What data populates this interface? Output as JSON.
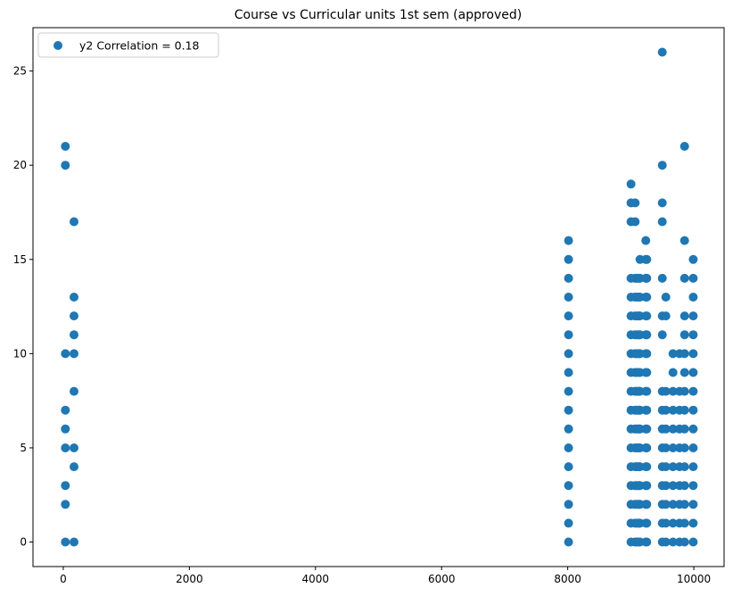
{
  "chart_data": {
    "type": "scatter",
    "title": "Course vs Curricular units 1st sem (approved)",
    "xlabel": "",
    "ylabel": "",
    "xlim": [
      -480,
      10480
    ],
    "ylim": [
      -1.3,
      27.3
    ],
    "xticks": [
      0,
      2000,
      4000,
      6000,
      8000,
      10000
    ],
    "yticks": [
      0,
      5,
      10,
      15,
      20,
      25
    ],
    "grid": false,
    "legend": {
      "position": "top-left"
    },
    "series": [
      {
        "name": "y2 Correlation = 0.18",
        "color": "#1f77b4",
        "points": [
          [
            33,
            0
          ],
          [
            33,
            2
          ],
          [
            33,
            3
          ],
          [
            33,
            5
          ],
          [
            33,
            6
          ],
          [
            33,
            7
          ],
          [
            33,
            10
          ],
          [
            33,
            20
          ],
          [
            33,
            21
          ],
          [
            171,
            0
          ],
          [
            171,
            4
          ],
          [
            171,
            5
          ],
          [
            171,
            8
          ],
          [
            171,
            10
          ],
          [
            171,
            11
          ],
          [
            171,
            12
          ],
          [
            171,
            13
          ],
          [
            171,
            17
          ],
          [
            8014,
            0
          ],
          [
            8014,
            1
          ],
          [
            8014,
            2
          ],
          [
            8014,
            3
          ],
          [
            8014,
            4
          ],
          [
            8014,
            5
          ],
          [
            8014,
            6
          ],
          [
            8014,
            7
          ],
          [
            8014,
            8
          ],
          [
            8014,
            9
          ],
          [
            8014,
            10
          ],
          [
            8014,
            11
          ],
          [
            8014,
            12
          ],
          [
            8014,
            13
          ],
          [
            8014,
            14
          ],
          [
            8014,
            15
          ],
          [
            8014,
            16
          ],
          [
            9003,
            0
          ],
          [
            9003,
            1
          ],
          [
            9003,
            2
          ],
          [
            9003,
            3
          ],
          [
            9003,
            4
          ],
          [
            9003,
            5
          ],
          [
            9003,
            6
          ],
          [
            9003,
            7
          ],
          [
            9003,
            8
          ],
          [
            9003,
            9
          ],
          [
            9003,
            10
          ],
          [
            9003,
            11
          ],
          [
            9003,
            12
          ],
          [
            9003,
            13
          ],
          [
            9003,
            14
          ],
          [
            9003,
            17
          ],
          [
            9003,
            18
          ],
          [
            9003,
            19
          ],
          [
            9070,
            0
          ],
          [
            9070,
            1
          ],
          [
            9070,
            2
          ],
          [
            9070,
            3
          ],
          [
            9070,
            4
          ],
          [
            9070,
            5
          ],
          [
            9070,
            6
          ],
          [
            9070,
            7
          ],
          [
            9070,
            8
          ],
          [
            9070,
            9
          ],
          [
            9070,
            10
          ],
          [
            9070,
            11
          ],
          [
            9070,
            12
          ],
          [
            9070,
            13
          ],
          [
            9070,
            14
          ],
          [
            9070,
            17
          ],
          [
            9070,
            18
          ],
          [
            9085,
            0
          ],
          [
            9085,
            1
          ],
          [
            9085,
            2
          ],
          [
            9085,
            3
          ],
          [
            9085,
            4
          ],
          [
            9085,
            5
          ],
          [
            9085,
            6
          ],
          [
            9085,
            7
          ],
          [
            9085,
            8
          ],
          [
            9085,
            9
          ],
          [
            9085,
            10
          ],
          [
            9085,
            11
          ],
          [
            9085,
            12
          ],
          [
            9085,
            13
          ],
          [
            9085,
            14
          ],
          [
            9119,
            0
          ],
          [
            9119,
            1
          ],
          [
            9119,
            2
          ],
          [
            9119,
            3
          ],
          [
            9119,
            4
          ],
          [
            9119,
            5
          ],
          [
            9119,
            6
          ],
          [
            9119,
            7
          ],
          [
            9119,
            8
          ],
          [
            9119,
            9
          ],
          [
            9119,
            10
          ],
          [
            9119,
            11
          ],
          [
            9119,
            12
          ],
          [
            9119,
            13
          ],
          [
            9119,
            14
          ],
          [
            9130,
            0
          ],
          [
            9130,
            1
          ],
          [
            9130,
            2
          ],
          [
            9130,
            3
          ],
          [
            9130,
            4
          ],
          [
            9130,
            5
          ],
          [
            9130,
            6
          ],
          [
            9130,
            7
          ],
          [
            9130,
            8
          ],
          [
            9130,
            10
          ],
          [
            9130,
            11
          ],
          [
            9130,
            12
          ],
          [
            9130,
            13
          ],
          [
            9130,
            14
          ],
          [
            9147,
            0
          ],
          [
            9147,
            1
          ],
          [
            9147,
            2
          ],
          [
            9147,
            3
          ],
          [
            9147,
            4
          ],
          [
            9147,
            5
          ],
          [
            9147,
            6
          ],
          [
            9147,
            7
          ],
          [
            9147,
            8
          ],
          [
            9147,
            9
          ],
          [
            9147,
            10
          ],
          [
            9147,
            11
          ],
          [
            9147,
            12
          ],
          [
            9147,
            13
          ],
          [
            9147,
            14
          ],
          [
            9147,
            15
          ],
          [
            9238,
            0
          ],
          [
            9238,
            1
          ],
          [
            9238,
            2
          ],
          [
            9238,
            3
          ],
          [
            9238,
            4
          ],
          [
            9238,
            5
          ],
          [
            9238,
            6
          ],
          [
            9238,
            7
          ],
          [
            9238,
            8
          ],
          [
            9238,
            9
          ],
          [
            9238,
            10
          ],
          [
            9238,
            11
          ],
          [
            9238,
            12
          ],
          [
            9238,
            13
          ],
          [
            9238,
            14
          ],
          [
            9238,
            15
          ],
          [
            9238,
            16
          ],
          [
            9254,
            0
          ],
          [
            9254,
            1
          ],
          [
            9254,
            2
          ],
          [
            9254,
            3
          ],
          [
            9254,
            4
          ],
          [
            9254,
            5
          ],
          [
            9254,
            6
          ],
          [
            9254,
            7
          ],
          [
            9254,
            8
          ],
          [
            9254,
            9
          ],
          [
            9254,
            10
          ],
          [
            9254,
            11
          ],
          [
            9254,
            12
          ],
          [
            9254,
            13
          ],
          [
            9254,
            14
          ],
          [
            9254,
            15
          ],
          [
            9500,
            0
          ],
          [
            9500,
            1
          ],
          [
            9500,
            2
          ],
          [
            9500,
            3
          ],
          [
            9500,
            4
          ],
          [
            9500,
            5
          ],
          [
            9500,
            6
          ],
          [
            9500,
            7
          ],
          [
            9500,
            8
          ],
          [
            9500,
            11
          ],
          [
            9500,
            12
          ],
          [
            9500,
            14
          ],
          [
            9500,
            17
          ],
          [
            9500,
            18
          ],
          [
            9500,
            20
          ],
          [
            9500,
            26
          ],
          [
            9556,
            0
          ],
          [
            9556,
            1
          ],
          [
            9556,
            2
          ],
          [
            9556,
            3
          ],
          [
            9556,
            4
          ],
          [
            9556,
            5
          ],
          [
            9556,
            6
          ],
          [
            9556,
            7
          ],
          [
            9556,
            8
          ],
          [
            9556,
            12
          ],
          [
            9556,
            13
          ],
          [
            9670,
            0
          ],
          [
            9670,
            1
          ],
          [
            9670,
            2
          ],
          [
            9670,
            3
          ],
          [
            9670,
            4
          ],
          [
            9670,
            5
          ],
          [
            9670,
            6
          ],
          [
            9670,
            7
          ],
          [
            9670,
            8
          ],
          [
            9670,
            9
          ],
          [
            9670,
            10
          ],
          [
            9773,
            0
          ],
          [
            9773,
            1
          ],
          [
            9773,
            2
          ],
          [
            9773,
            3
          ],
          [
            9773,
            4
          ],
          [
            9773,
            5
          ],
          [
            9773,
            6
          ],
          [
            9773,
            7
          ],
          [
            9773,
            8
          ],
          [
            9773,
            10
          ],
          [
            9853,
            0
          ],
          [
            9853,
            1
          ],
          [
            9853,
            2
          ],
          [
            9853,
            3
          ],
          [
            9853,
            4
          ],
          [
            9853,
            5
          ],
          [
            9853,
            6
          ],
          [
            9853,
            7
          ],
          [
            9853,
            8
          ],
          [
            9853,
            9
          ],
          [
            9853,
            10
          ],
          [
            9853,
            11
          ],
          [
            9853,
            12
          ],
          [
            9853,
            14
          ],
          [
            9853,
            16
          ],
          [
            9853,
            21
          ],
          [
            9991,
            0
          ],
          [
            9991,
            1
          ],
          [
            9991,
            2
          ],
          [
            9991,
            3
          ],
          [
            9991,
            4
          ],
          [
            9991,
            5
          ],
          [
            9991,
            6
          ],
          [
            9991,
            7
          ],
          [
            9991,
            8
          ],
          [
            9991,
            9
          ],
          [
            9991,
            10
          ],
          [
            9991,
            11
          ],
          [
            9991,
            12
          ],
          [
            9991,
            13
          ],
          [
            9991,
            14
          ],
          [
            9991,
            15
          ]
        ]
      }
    ]
  }
}
